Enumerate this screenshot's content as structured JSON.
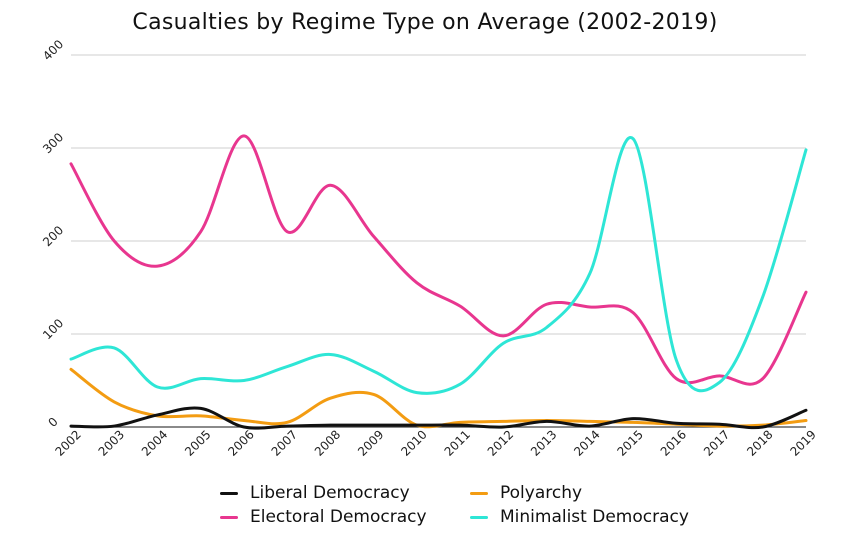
{
  "chart_data": {
    "type": "line",
    "title": "Casualties by Regime Type on Average (2002-2019)",
    "xlabel": "",
    "ylabel": "",
    "ylim": [
      0,
      400
    ],
    "yticks": [
      0,
      100,
      200,
      300,
      400
    ],
    "grid": true,
    "legend_position": "bottom",
    "categories": [
      "2002",
      "2003",
      "2004",
      "2005",
      "2006",
      "2007",
      "2008",
      "2009",
      "2010",
      "2011",
      "2012",
      "2013",
      "2014",
      "2015",
      "2016",
      "2017",
      "2018",
      "2019"
    ],
    "series": [
      {
        "name": "Liberal Democracy",
        "color": "#111111",
        "values": [
          1,
          1,
          13,
          20,
          0,
          1,
          2,
          2,
          2,
          2,
          0,
          6,
          1,
          9,
          4,
          3,
          0,
          18
        ]
      },
      {
        "name": "Polyarchy",
        "color": "#f39c12",
        "values": [
          62,
          27,
          12,
          12,
          7,
          5,
          31,
          35,
          2,
          5,
          6,
          7,
          6,
          5,
          3,
          1,
          2,
          7
        ]
      },
      {
        "name": "Electoral Democracy",
        "color": "#e8368f",
        "values": [
          283,
          200,
          173,
          210,
          313,
          210,
          260,
          205,
          155,
          130,
          98,
          132,
          129,
          123,
          52,
          55,
          52,
          145
        ]
      },
      {
        "name": "Minimalist Democracy",
        "color": "#2ee6d6",
        "values": [
          73,
          85,
          43,
          52,
          50,
          65,
          78,
          60,
          37,
          46,
          90,
          107,
          165,
          310,
          72,
          48,
          140,
          298
        ]
      }
    ]
  }
}
